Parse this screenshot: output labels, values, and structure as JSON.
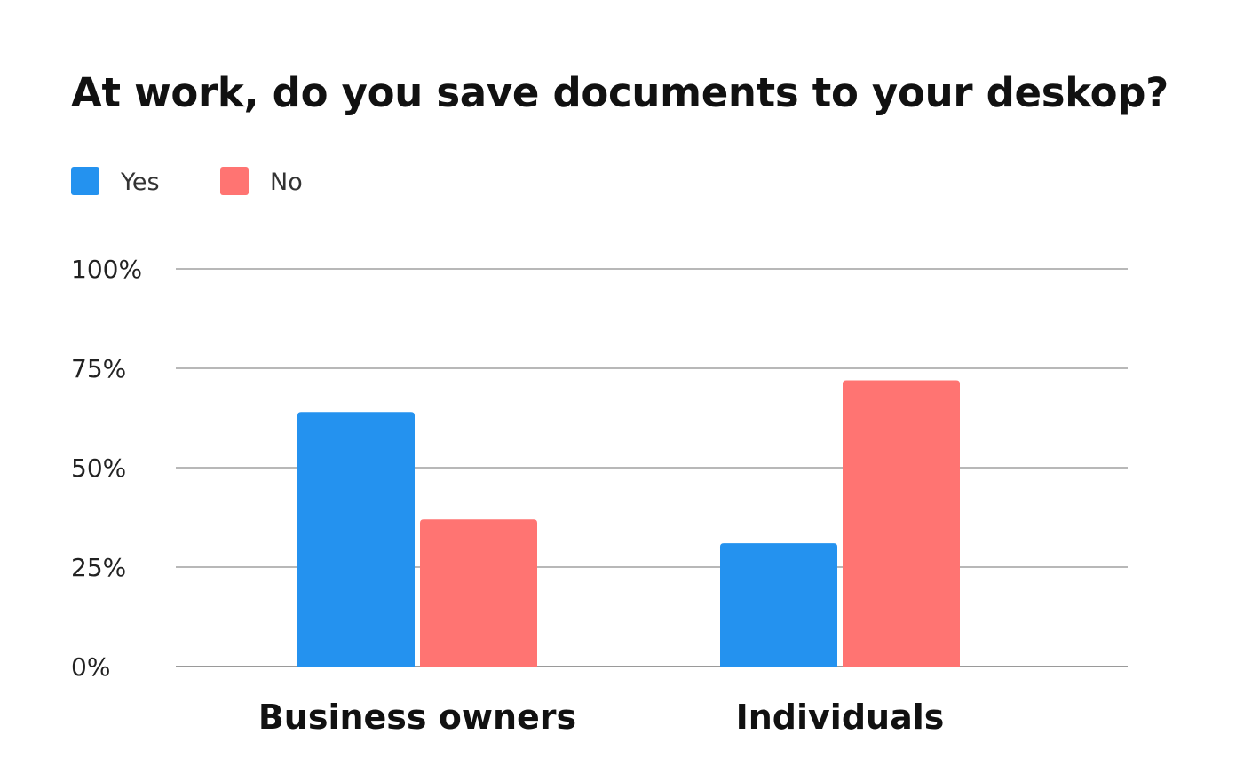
{
  "chart_data": {
    "type": "bar",
    "title": "At work, do you save documents to your deskop?",
    "categories": [
      "Business owners",
      "Individuals"
    ],
    "series": [
      {
        "name": "Yes",
        "color": "#2492EF",
        "values": [
          64,
          31
        ]
      },
      {
        "name": "No",
        "color": "#FF7472",
        "values": [
          37,
          72
        ]
      }
    ],
    "ylim": [
      0,
      100
    ],
    "yticks": [
      0,
      25,
      50,
      75,
      100
    ],
    "ytick_labels": [
      "0%",
      "25%",
      "50%",
      "75%",
      "100%"
    ],
    "xlabel": "",
    "ylabel": "",
    "legend": "top-left",
    "grid": true
  }
}
